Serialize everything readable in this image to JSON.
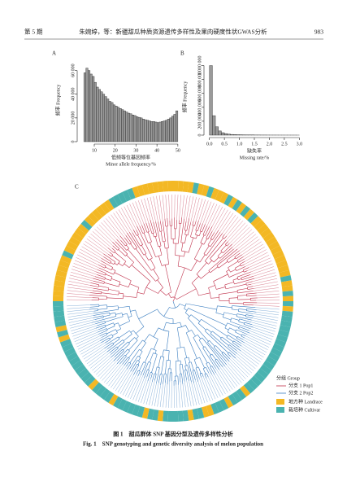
{
  "header": {
    "issue": "第 5 期",
    "title": "朱婉婷，等：新疆甜瓜种质资源遗传多样性及果肉硬度性状GWAS分析",
    "page": "983"
  },
  "figure": {
    "panel_a": {
      "type": "histogram",
      "letter": "A",
      "ylabel": "频率 Frequency",
      "xlabel": [
        "低频等位基因频率",
        "Minor allele frequency/%"
      ],
      "bins": [
        5,
        6,
        7,
        8,
        9,
        10,
        11,
        12,
        13,
        14,
        15,
        16,
        17,
        18,
        19,
        20,
        21,
        22,
        23,
        24,
        25,
        26,
        27,
        28,
        29,
        30,
        31,
        32,
        33,
        34,
        35,
        36,
        37,
        38,
        39,
        40,
        41,
        42,
        43,
        44,
        45,
        46,
        47,
        48,
        49,
        50
      ],
      "values": [
        58000,
        62000,
        60000,
        57000,
        55000,
        50000,
        46000,
        44000,
        42000,
        40000,
        38000,
        36000,
        34000,
        33000,
        31000,
        30000,
        29000,
        28000,
        27000,
        26000,
        25000,
        24000,
        23500,
        22500,
        22000,
        21000,
        20500,
        20000,
        19000,
        18500,
        18000,
        17500,
        17000,
        17000,
        16500,
        16000,
        16500,
        17000,
        17500,
        18000,
        19000,
        20000,
        21500,
        23000,
        26000
      ],
      "color": "#9a9a9a",
      "xlim": [
        3,
        52
      ],
      "ylim": [
        0,
        70000
      ],
      "xticks": [
        10,
        20,
        30,
        40,
        50
      ],
      "yticks": [
        0,
        {
          "value": 20000,
          "label": "20 000"
        },
        {
          "value": 40000,
          "label": "40 000"
        },
        {
          "value": 60000,
          "label": "60 000"
        }
      ]
    },
    "panel_b": {
      "type": "histogram",
      "letter": "B",
      "ylabel": "频率 Frequency",
      "xlabel": [
        "缺失率",
        "Missing rate/%"
      ],
      "bins": [
        0,
        0.1,
        0.2,
        0.3,
        0.4,
        0.5,
        0.6,
        0.7,
        0.8,
        0.9,
        1,
        1.1,
        1.2,
        1.3,
        1.4,
        1.5,
        1.6,
        1.7,
        1.8,
        1.9,
        2,
        2.1,
        2.2,
        2.3,
        2.4,
        2.5,
        2.6,
        2.7,
        2.8,
        2.9,
        3
      ],
      "values": [
        1000000,
        280000,
        120000,
        60000,
        35000,
        22000,
        15000,
        10000,
        8000,
        6000,
        5000,
        4000,
        3500,
        3000,
        2500,
        2000,
        2000,
        1500,
        1500,
        1200,
        1000,
        1000,
        900,
        800,
        700,
        600,
        600,
        500,
        500,
        400
      ],
      "color": "#9a9a9a",
      "xlim": [
        -0.1,
        3.1
      ],
      "ylim": [
        0,
        1100000
      ],
      "xticks": [
        {
          "value": 0,
          "label": "0.0"
        },
        0.5,
        {
          "value": 1,
          "label": "1.0"
        },
        1.5,
        {
          "value": 2,
          "label": "2.0"
        },
        2.5,
        {
          "value": 3,
          "label": "3.0"
        }
      ],
      "yticks": [
        0,
        {
          "value": 200000,
          "label": "200 000"
        },
        {
          "value": 400000,
          "label": "400 000"
        },
        {
          "value": 600000,
          "label": "600 000"
        },
        {
          "value": 800000,
          "label": "800 000"
        },
        {
          "value": 1000000,
          "label": "1 000 000"
        }
      ]
    },
    "panel_c": {
      "letter": "C",
      "legend": {
        "title": "分组 Group",
        "pop1": "分支 1 Pop1",
        "pop2": "分支 2 Pop2",
        "landrace": "地方种 Landrace",
        "cultivar": "栽培种 Cultivar"
      }
    },
    "caption_cn": "图 1　甜瓜群体 SNP 基因分型及遗传多样性分析",
    "caption_en": "Fig. 1　SNP genotyping and genetic diversity analysis of melon population"
  }
}
